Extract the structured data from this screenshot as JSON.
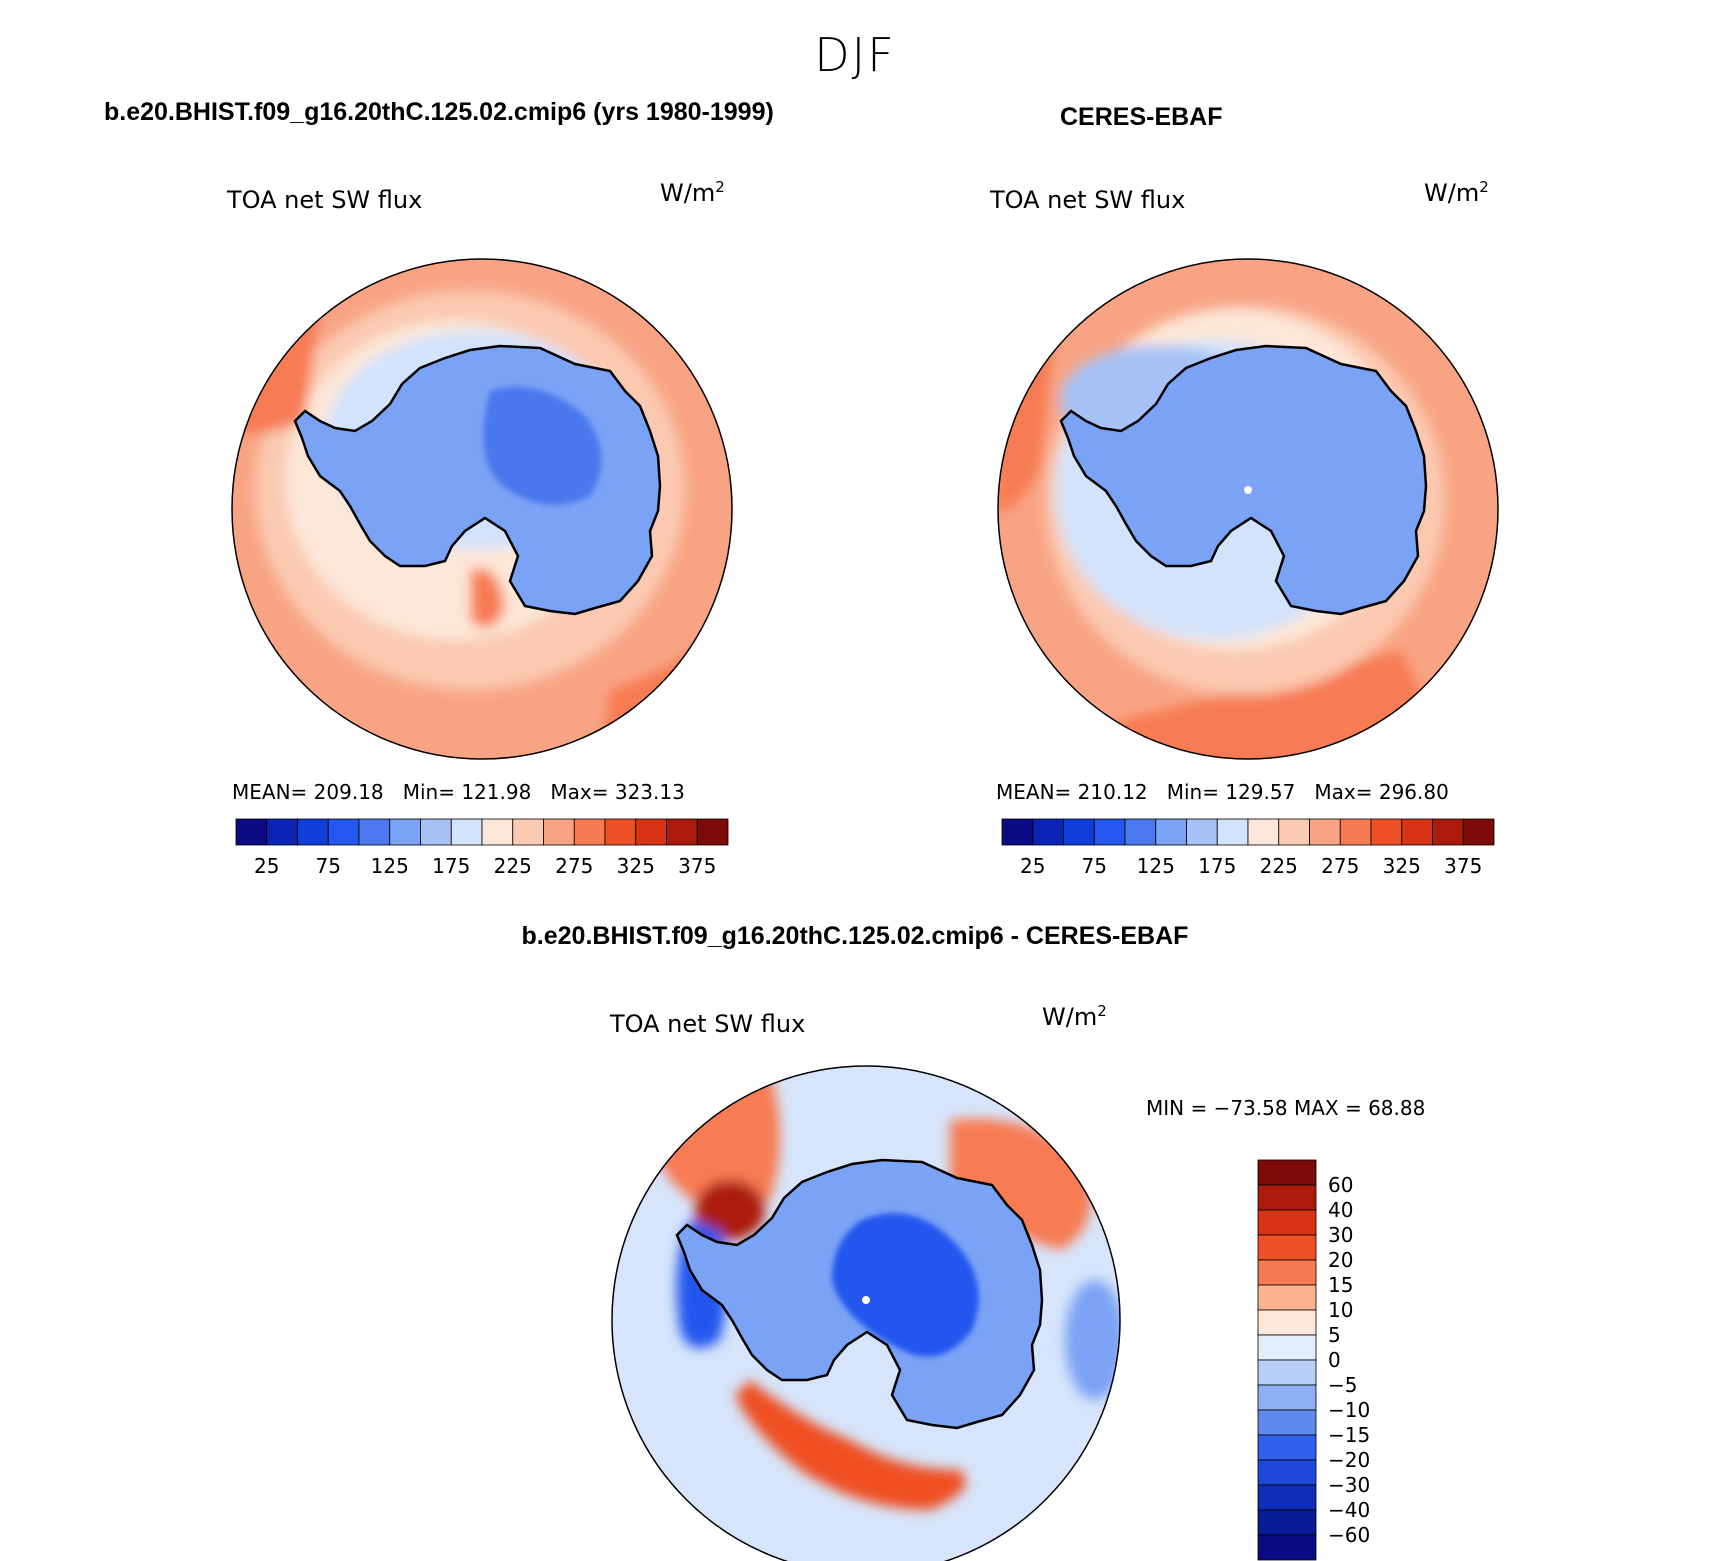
{
  "figure": {
    "season": "DJF",
    "units_label": "W/m",
    "units_exp": "2",
    "variable": "TOA net SW flux"
  },
  "panels": {
    "model": {
      "title": "b.e20.BHIST.f09_g16.20thC.125.02.cmip6 (yrs 1980-1999)",
      "mean_label": "MEAN=",
      "mean": "209.18",
      "min_label": "Min=",
      "min": "121.98",
      "max_label": "Max=",
      "max": "323.13"
    },
    "obs": {
      "title": "CERES-EBAF",
      "mean_label": "MEAN=",
      "mean": "210.12",
      "min_label": "Min=",
      "min": "129.57",
      "max_label": "Max=",
      "max": "296.80"
    },
    "diff": {
      "title": "b.e20.BHIST.f09_g16.20thC.125.02.cmip6 - CERES-EBAF",
      "minmax_text": "MIN = −73.58 MAX =   68.88"
    }
  },
  "colorbar_main": {
    "colors": [
      "#0a0a82",
      "#0b23b4",
      "#0f3fd8",
      "#2457ee",
      "#4a78ee",
      "#7ba3f5",
      "#a7c2f7",
      "#d3e3fb",
      "#fde7d8",
      "#fbc9b1",
      "#f8a484",
      "#f77b52",
      "#ef4f24",
      "#d73315",
      "#ac1a0c",
      "#7c0a07"
    ],
    "tick_labels": [
      "25",
      "75",
      "125",
      "175",
      "225",
      "275",
      "325",
      "375"
    ]
  },
  "colorbar_diff": {
    "colors": [
      "#7c0a07",
      "#ac1a0c",
      "#d73315",
      "#ef4f24",
      "#f77b52",
      "#fbb390",
      "#fde7d8",
      "#e2eefc",
      "#b9cff8",
      "#8eb0f3",
      "#5f89ee",
      "#2f61ea",
      "#1d48d8",
      "#0e2eb8",
      "#081c96",
      "#0a0a82"
    ],
    "tick_labels": [
      "60",
      "40",
      "30",
      "20",
      "15",
      "10",
      "5",
      "0",
      "−5",
      "−10",
      "−15",
      "−20",
      "−30",
      "−40",
      "−60"
    ]
  }
}
